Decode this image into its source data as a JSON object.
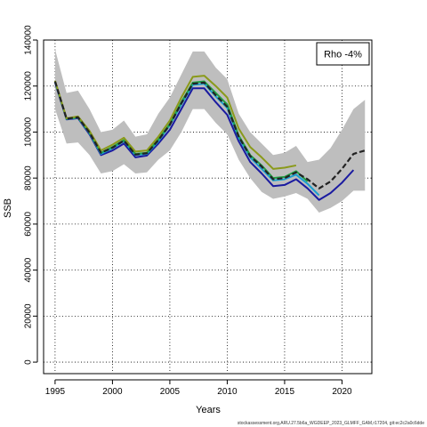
{
  "chart_data": {
    "type": "line",
    "xlabel": "Years",
    "ylabel": "SSB",
    "xlim": [
      1994,
      2022.6
    ],
    "ylim": [
      -5000,
      140000
    ],
    "x_ticks": [
      1995,
      2000,
      2005,
      2010,
      2015,
      2020
    ],
    "y_ticks": [
      0,
      20000,
      40000,
      60000,
      80000,
      100000,
      120000,
      140000
    ],
    "grid": true,
    "legend": {
      "position": "top-right",
      "text": "Rho -4%"
    },
    "band": {
      "x": [
        1995,
        1996,
        1997,
        1998,
        1999,
        2000,
        2001,
        2002,
        2003,
        2004,
        2005,
        2006,
        2007,
        2008,
        2009,
        2010,
        2011,
        2012,
        2013,
        2014,
        2015,
        2016,
        2017,
        2018,
        2019,
        2020,
        2021,
        2022
      ],
      "upper": [
        136000,
        117000,
        118000,
        110000,
        100000,
        101000,
        105000,
        98000,
        99000,
        108000,
        115000,
        125000,
        135000,
        135000,
        128000,
        123000,
        108000,
        100000,
        95000,
        90000,
        91000,
        94000,
        87000,
        88000,
        93000,
        101000,
        110000,
        114000
      ],
      "lower": [
        110000,
        95000,
        95500,
        90000,
        82000,
        83000,
        86000,
        82000,
        82500,
        88000,
        92000,
        100000,
        110000,
        110000,
        104000,
        99000,
        88000,
        80000,
        74000,
        71000,
        72000,
        73500,
        71000,
        65000,
        67000,
        70000,
        74500,
        74500
      ]
    },
    "series": [
      {
        "color": "#1a1aa0",
        "dashed": false,
        "x": [
          1995,
          1996,
          1997,
          1998,
          1999,
          2000,
          2001,
          2002,
          2003,
          2004,
          2005,
          2006,
          2007,
          2008,
          2009,
          2010,
          2011,
          2012,
          2013,
          2014,
          2015,
          2016,
          2017,
          2018,
          2019,
          2020,
          2021
        ],
        "y": [
          121500,
          105500,
          106000,
          99000,
          90000,
          92000,
          95000,
          89000,
          89800,
          95000,
          101000,
          110000,
          119000,
          119000,
          113000,
          107500,
          96000,
          87000,
          82000,
          76500,
          77000,
          79500,
          75500,
          70500,
          73500,
          78000,
          83500
        ]
      },
      {
        "color": "#19a0d0",
        "dashed": false,
        "x": [
          1995,
          1996,
          1997,
          1998,
          1999,
          2000,
          2001,
          2002,
          2003,
          2004,
          2005,
          2006,
          2007,
          2008,
          2009,
          2010,
          2011,
          2012,
          2013,
          2014,
          2015,
          2016,
          2017,
          2018
        ],
        "y": [
          121800,
          105700,
          106200,
          99500,
          90500,
          93000,
          96000,
          90000,
          90500,
          96000,
          103000,
          112000,
          120500,
          121000,
          115500,
          110500,
          97500,
          89000,
          84000,
          79000,
          79500,
          81500,
          77500,
          72500
        ]
      },
      {
        "color": "#22a045",
        "dashed": false,
        "x": [
          1995,
          1996,
          1997,
          1998,
          1999,
          2000,
          2001,
          2002,
          2003,
          2004,
          2005,
          2006,
          2007,
          2008,
          2009,
          2010,
          2011,
          2012,
          2013,
          2014,
          2015,
          2016,
          2017
        ],
        "y": [
          122000,
          105800,
          106400,
          99800,
          91000,
          93500,
          96500,
          90500,
          91000,
          96800,
          103500,
          113000,
          121500,
          122000,
          117000,
          112000,
          98500,
          90000,
          85500,
          80000,
          80500,
          83000,
          78500
        ]
      },
      {
        "color": "#8a9a1a",
        "dashed": false,
        "x": [
          1995,
          1996,
          1997,
          1998,
          1999,
          2000,
          2001,
          2002,
          2003,
          2004,
          2005,
          2006,
          2007,
          2008,
          2009,
          2010,
          2011,
          2012,
          2013,
          2014,
          2015,
          2016
        ],
        "y": [
          122300,
          106000,
          106800,
          100500,
          92000,
          94500,
          97500,
          91500,
          92000,
          98000,
          105000,
          115000,
          124000,
          124500,
          120000,
          115000,
          101500,
          93500,
          89000,
          84000,
          84500,
          85500
        ]
      },
      {
        "color": "#222222",
        "dashed": true,
        "x": [
          1995,
          1996,
          1997,
          1998,
          1999,
          2000,
          2001,
          2002,
          2003,
          2004,
          2005,
          2006,
          2007,
          2008,
          2009,
          2010,
          2011,
          2012,
          2013,
          2014,
          2015,
          2016,
          2017,
          2018,
          2019,
          2020,
          2021,
          2022
        ],
        "y": [
          122000,
          105800,
          106400,
          99800,
          91000,
          93200,
          96300,
          90200,
          90800,
          96500,
          103200,
          112500,
          121000,
          121500,
          116000,
          111000,
          98000,
          89500,
          85000,
          79500,
          80000,
          82500,
          79500,
          75500,
          78500,
          84000,
          90500,
          92000
        ]
      }
    ]
  },
  "footer": {
    "text": "stockassessment.org,ARU.27.5b6a_WGDEEP_2023_GLMFF_GAM,r17204, git:ec2c2a0c6dde"
  }
}
